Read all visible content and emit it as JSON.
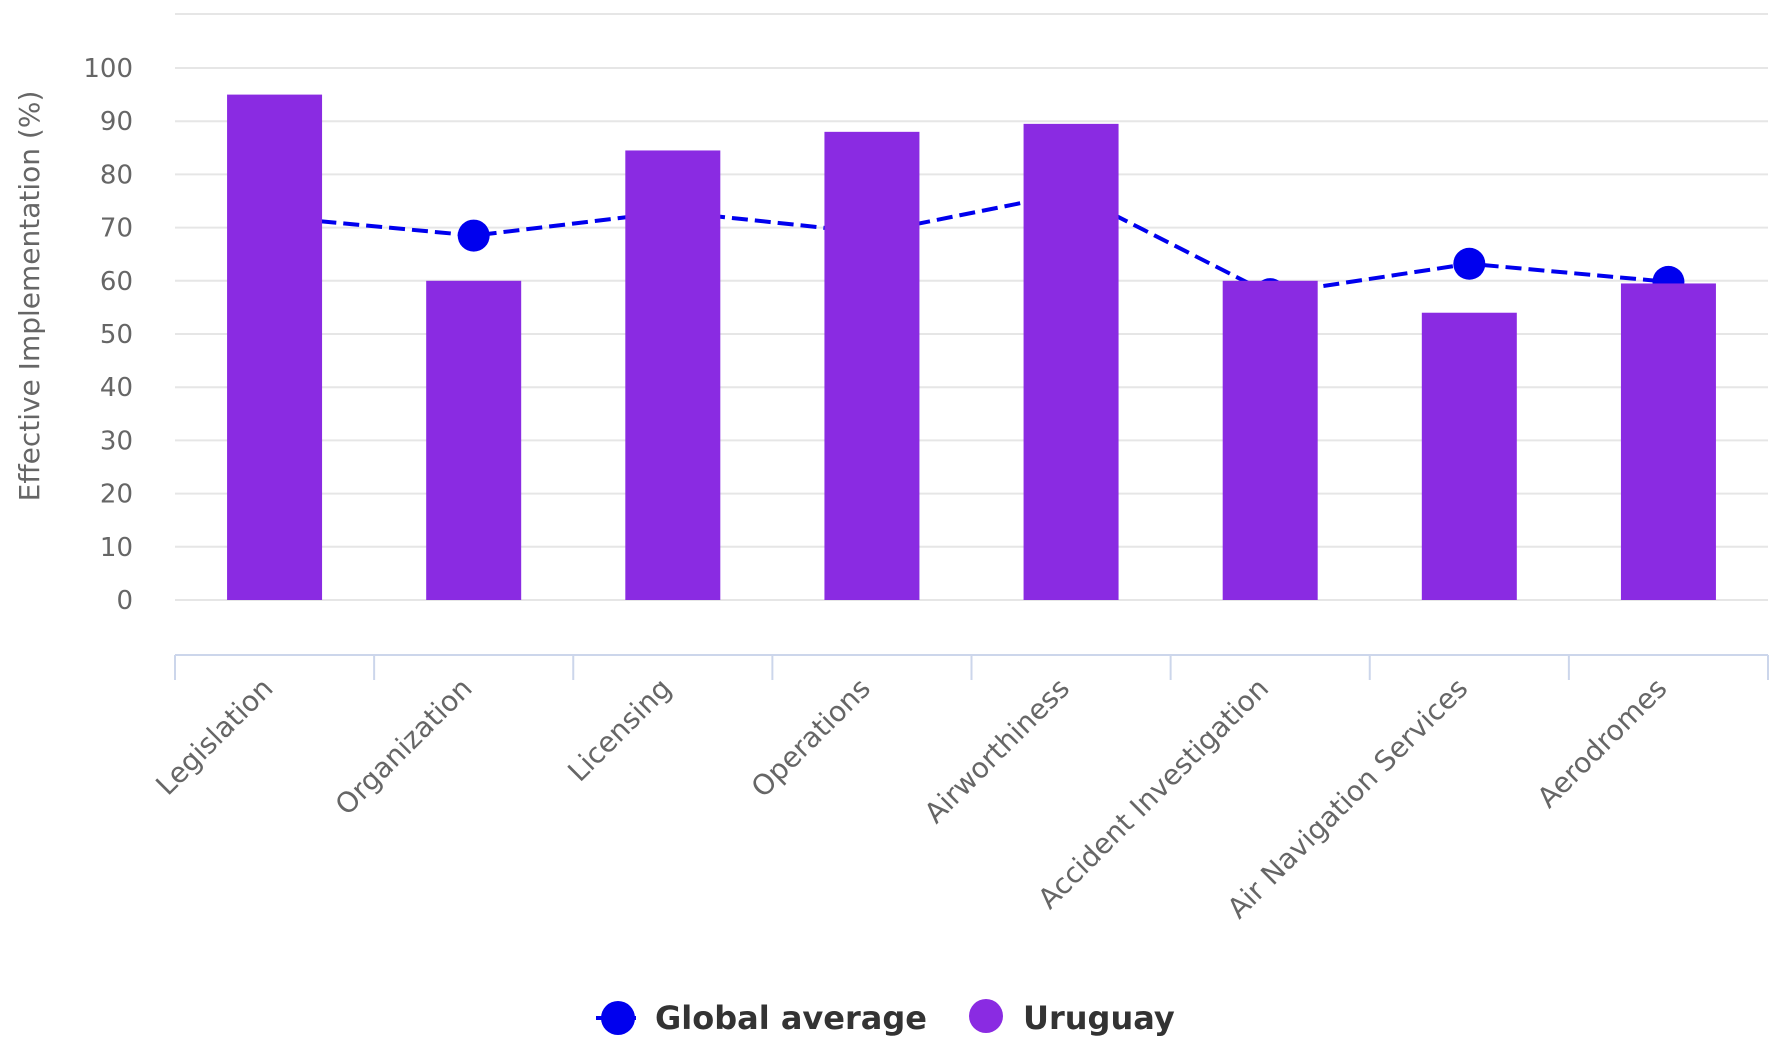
{
  "chart_data": {
    "type": "bar",
    "ylabel": "Effective Implementation (%)",
    "xlabel": "",
    "ylim": [
      0,
      100
    ],
    "yticks": [
      "0",
      "10",
      "20",
      "30",
      "40",
      "50",
      "60",
      "70",
      "80",
      "90",
      "100"
    ],
    "grid": true,
    "legend_position": "bottom",
    "categories": [
      "Legislation",
      "Organization",
      "Licensing",
      "Operations",
      "Airworthiness",
      "Accident Investigation",
      "Air Navigation Services",
      "Aerodromes"
    ],
    "series": [
      {
        "name": "Uruguay",
        "type": "bar",
        "color": "#8a2be2",
        "values": [
          95,
          60,
          84.5,
          88,
          89.5,
          60,
          54,
          59.5
        ]
      },
      {
        "name": "Global average",
        "type": "line",
        "style": "dashed",
        "color": "#0000ee",
        "values": [
          72,
          68.5,
          73,
          69,
          76.5,
          57.5,
          63.2,
          59.8
        ]
      }
    ]
  }
}
